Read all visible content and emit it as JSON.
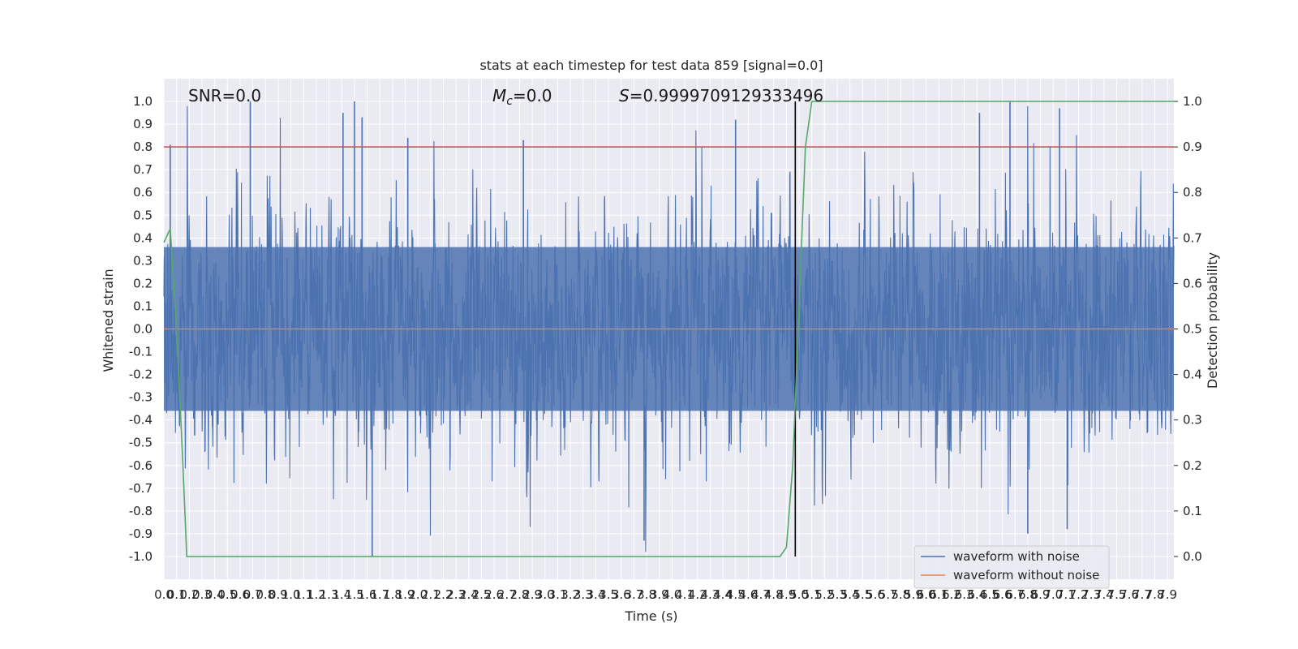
{
  "chart_data": {
    "type": "line",
    "title": "stats at each timestep for test data 859 [signal=0.0]",
    "xlabel": "Time (s)",
    "ylabel": "Whitened strain",
    "y2label": "Detection probability",
    "xlim": [
      0.0,
      7.95
    ],
    "ylim": [
      -1.1,
      1.1
    ],
    "y2lim": [
      -0.05,
      1.05
    ],
    "x_ticks": [
      "0.0",
      "0.1",
      "0.2",
      "0.3",
      "0.4",
      "0.5",
      "0.6",
      "0.7",
      "0.8",
      "0.9",
      "1.0",
      "1.1",
      "1.2",
      "1.3",
      "1.4",
      "1.5",
      "1.6",
      "1.7",
      "1.8",
      "1.9",
      "2.0",
      "2.1",
      "2.2",
      "2.3",
      "2.4",
      "2.5",
      "2.6",
      "2.7",
      "2.8",
      "2.9",
      "3.0",
      "3.1",
      "3.2",
      "3.3",
      "3.4",
      "3.5",
      "3.6",
      "3.7",
      "3.8",
      "3.9",
      "4.0",
      "4.1",
      "4.2",
      "4.3",
      "4.4",
      "4.5",
      "4.6",
      "4.7",
      "4.8",
      "4.9",
      "5.0",
      "5.1",
      "5.2",
      "5.3",
      "5.4",
      "5.5",
      "5.6",
      "5.7",
      "5.8",
      "5.9",
      "6.0",
      "6.1",
      "6.2",
      "6.3",
      "6.4",
      "6.5",
      "6.6",
      "6.7",
      "6.8",
      "6.9",
      "7.0",
      "7.1",
      "7.2",
      "7.3",
      "7.4",
      "7.5",
      "7.6",
      "7.7",
      "7.8",
      "7.9"
    ],
    "y_ticks": [
      "-1.0",
      "-0.9",
      "-0.8",
      "-0.7",
      "-0.6",
      "-0.5",
      "-0.4",
      "-0.3",
      "-0.2",
      "-0.1",
      "0.0",
      "0.1",
      "0.2",
      "0.3",
      "0.4",
      "0.5",
      "0.6",
      "0.7",
      "0.8",
      "0.9",
      "1.0"
    ],
    "y2_ticks": [
      "0.0",
      "0.1",
      "0.2",
      "0.3",
      "0.4",
      "0.5",
      "0.6",
      "0.7",
      "0.8",
      "0.9",
      "1.0"
    ],
    "annotations": {
      "snr": "SNR=0.0",
      "mc_symbol": "M",
      "mc_sub": "c",
      "mc_value": "=0.0",
      "s_symbol": "S",
      "s_value": "=0.9999709129333496"
    },
    "legend": {
      "placement": "lower-right",
      "entries": [
        "waveform with noise",
        "waveform without noise"
      ]
    },
    "threshold_line": {
      "y": 0.8,
      "color": "#c44e52"
    },
    "marker_line": {
      "x": 4.97,
      "color": "#000000"
    },
    "colors": {
      "noise": "#4c72b0",
      "clean": "#dd8452",
      "probability": "#55a868",
      "plot_bg": "#eaeaf2",
      "grid": "#ffffff"
    },
    "series": [
      {
        "name": "waveform with noise",
        "style": "dense noise trace",
        "envelope_typical": 0.4,
        "peaks": [
          {
            "x": 0.05,
            "y": 0.81
          },
          {
            "x": 0.68,
            "y": 1.0
          },
          {
            "x": 1.41,
            "y": 0.95
          },
          {
            "x": 1.5,
            "y": 1.0
          },
          {
            "x": 1.56,
            "y": 0.93
          },
          {
            "x": 1.92,
            "y": 0.84
          },
          {
            "x": 2.83,
            "y": 0.83
          },
          {
            "x": 4.5,
            "y": 0.92
          },
          {
            "x": 6.42,
            "y": 0.95
          },
          {
            "x": 6.66,
            "y": 1.0
          },
          {
            "x": 7.05,
            "y": 0.97
          },
          {
            "x": 1.64,
            "y": -1.0
          },
          {
            "x": 3.78,
            "y": -0.93
          },
          {
            "x": 6.8,
            "y": -0.9
          },
          {
            "x": 7.11,
            "y": -0.88
          }
        ]
      },
      {
        "name": "waveform without noise",
        "values": "0 throughout"
      },
      {
        "name": "detection probability",
        "axis": "right",
        "x": [
          0.0,
          0.05,
          0.1,
          0.15,
          0.18,
          0.25,
          1.0,
          2.0,
          3.0,
          4.0,
          4.7,
          4.85,
          4.9,
          4.95,
          5.0,
          5.05,
          5.1,
          7.95
        ],
        "y": [
          0.69,
          0.72,
          0.5,
          0.2,
          0.0,
          0.0,
          0.0,
          0.0,
          0.0,
          0.0,
          0.0,
          0.0,
          0.02,
          0.2,
          0.55,
          0.9,
          1.0,
          1.0
        ]
      }
    ],
    "grid": true
  }
}
